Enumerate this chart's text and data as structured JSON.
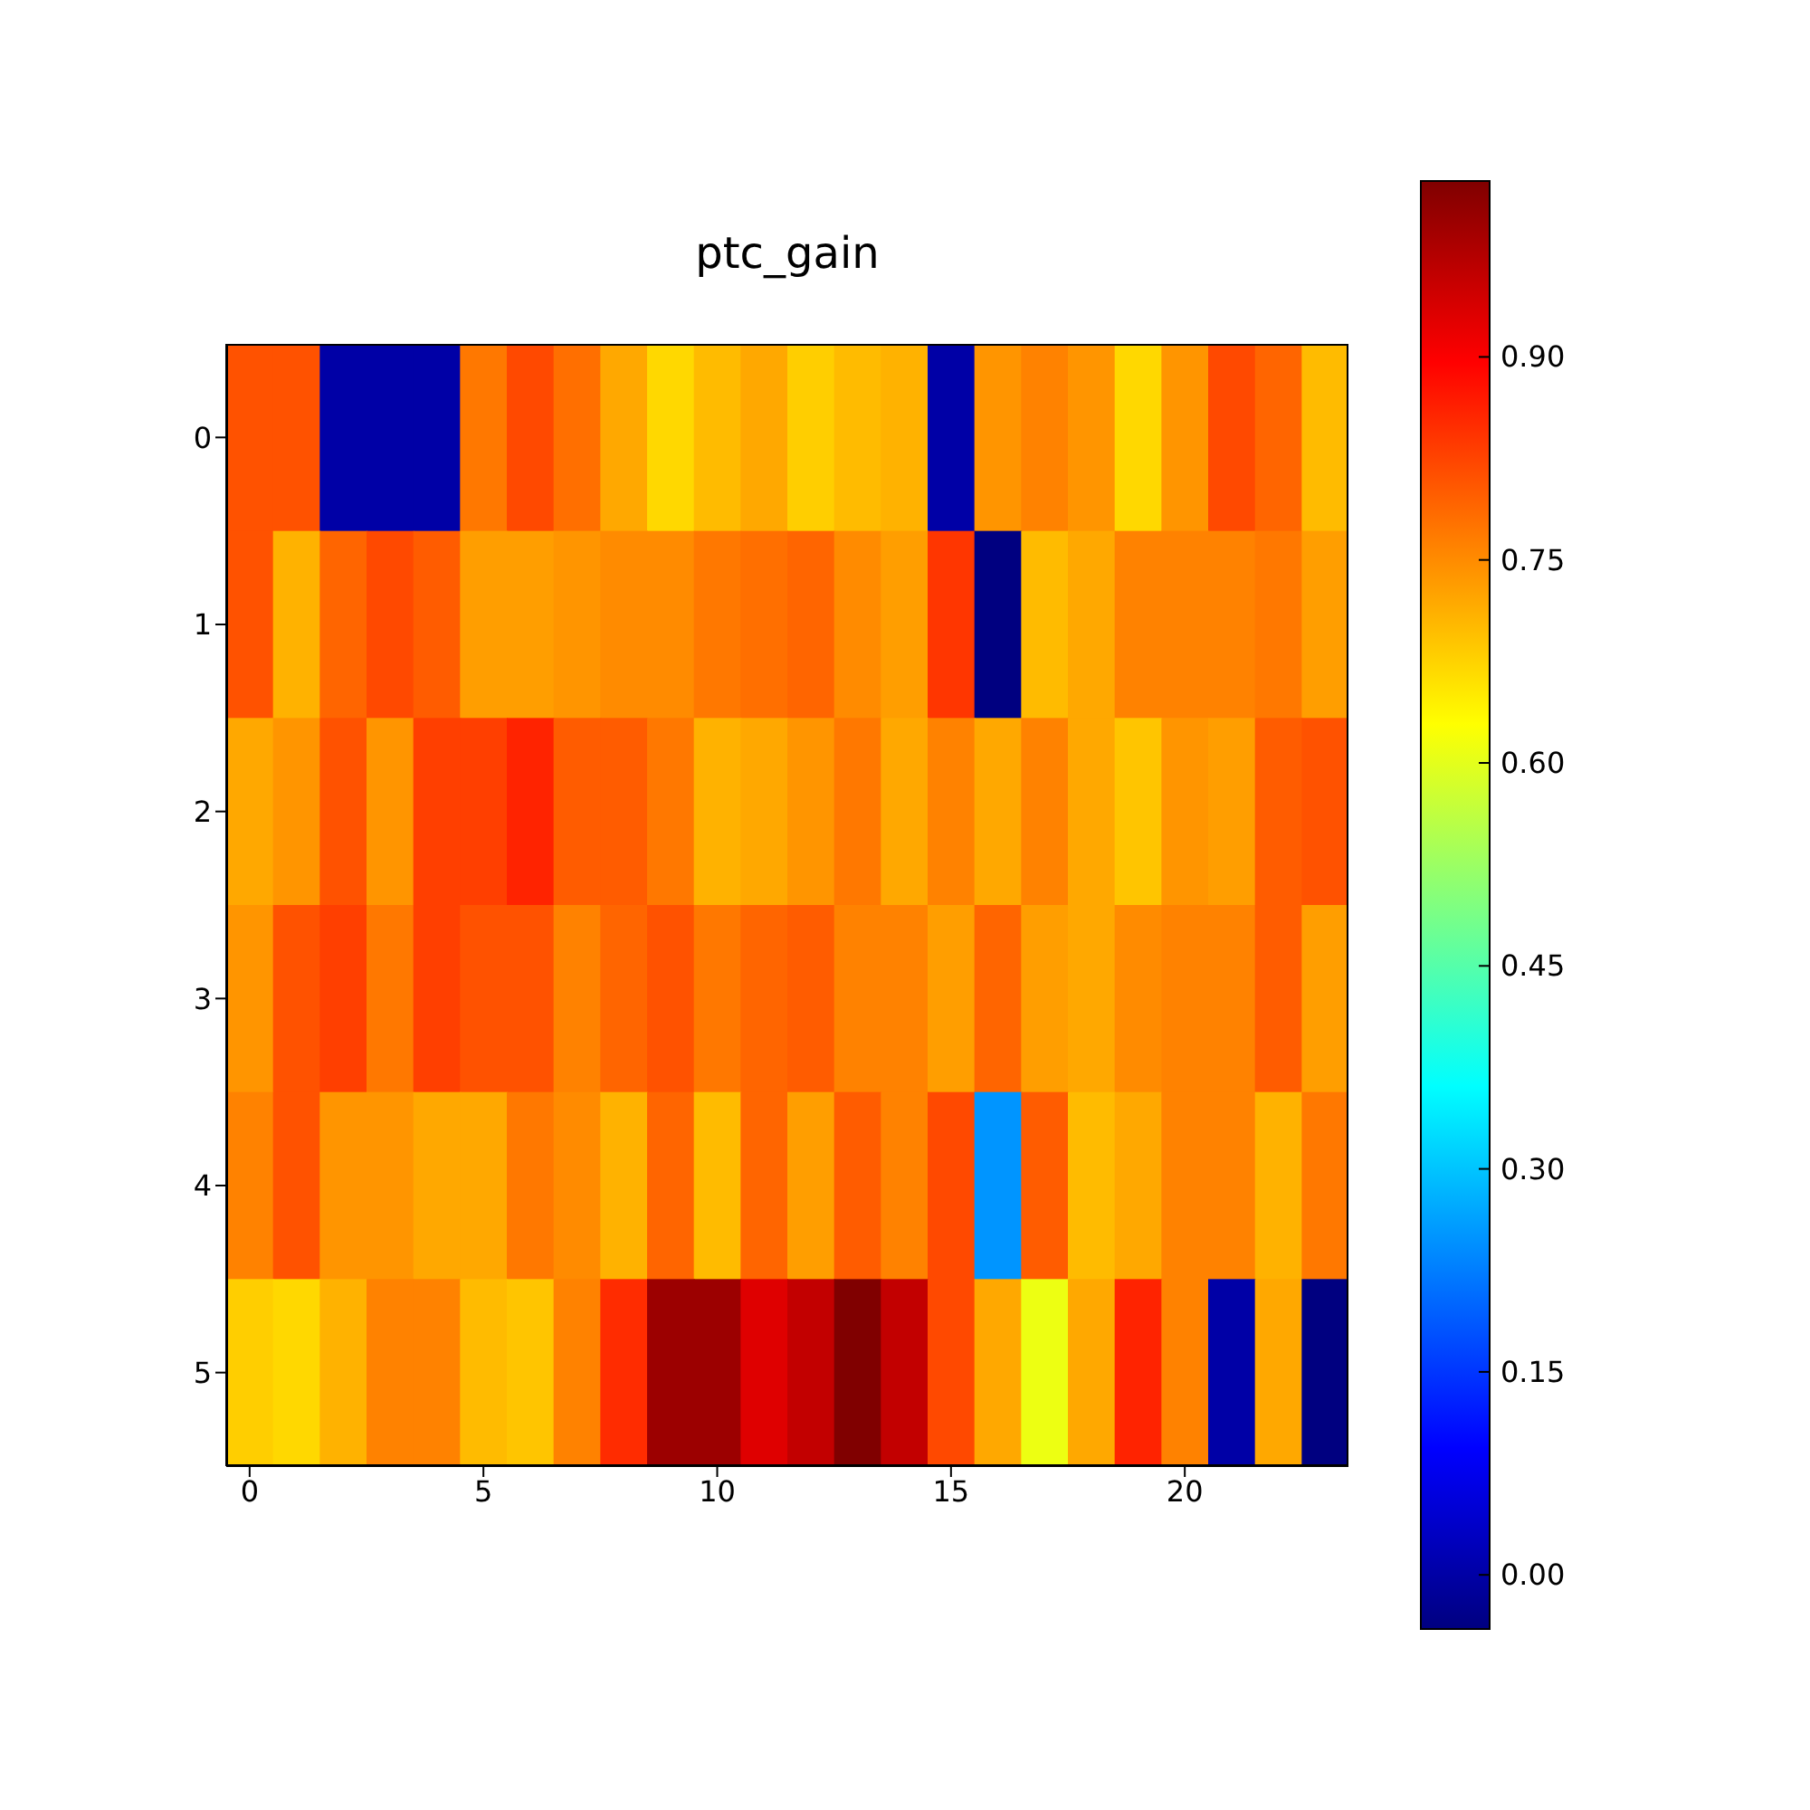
{
  "chart_data": {
    "type": "heatmap",
    "title": "ptc_gain",
    "categories": [
      "0",
      null,
      null,
      null,
      null,
      "5",
      null,
      null,
      null,
      null,
      "10",
      null,
      null,
      null,
      null,
      "15",
      null,
      null,
      null,
      null,
      "20",
      null,
      null,
      null
    ],
    "y_categories": [
      "0",
      "1",
      "2",
      "3",
      "4",
      "5"
    ],
    "cells": [
      [
        0.81,
        0.81,
        0.0,
        0.0,
        0.0,
        0.77,
        0.82,
        0.78,
        0.72,
        0.67,
        0.7,
        0.72,
        0.68,
        0.7,
        0.71,
        0.0,
        0.74,
        0.76,
        0.74,
        0.67,
        0.74,
        0.82,
        0.79,
        0.7
      ],
      [
        0.81,
        0.71,
        0.79,
        0.82,
        0.8,
        0.73,
        0.73,
        0.74,
        0.75,
        0.75,
        0.77,
        0.78,
        0.79,
        0.75,
        0.73,
        0.84,
        -0.04,
        0.7,
        0.72,
        0.76,
        0.76,
        0.76,
        0.77,
        0.73
      ],
      [
        0.72,
        0.74,
        0.81,
        0.74,
        0.83,
        0.83,
        0.86,
        0.8,
        0.8,
        0.77,
        0.71,
        0.72,
        0.74,
        0.77,
        0.72,
        0.76,
        0.72,
        0.76,
        0.72,
        0.69,
        0.74,
        0.73,
        0.8,
        0.81
      ],
      [
        0.74,
        0.81,
        0.83,
        0.77,
        0.83,
        0.81,
        0.81,
        0.76,
        0.79,
        0.81,
        0.77,
        0.79,
        0.8,
        0.76,
        0.76,
        0.73,
        0.79,
        0.73,
        0.72,
        0.75,
        0.76,
        0.76,
        0.8,
        0.73
      ],
      [
        0.76,
        0.81,
        0.74,
        0.74,
        0.72,
        0.72,
        0.77,
        0.75,
        0.71,
        0.79,
        0.7,
        0.79,
        0.73,
        0.8,
        0.76,
        0.82,
        0.25,
        0.8,
        0.7,
        0.72,
        0.76,
        0.76,
        0.71,
        0.77
      ],
      [
        0.68,
        0.67,
        0.71,
        0.76,
        0.76,
        0.7,
        0.69,
        0.76,
        0.85,
        1.0,
        1.0,
        0.93,
        0.96,
        1.03,
        0.96,
        0.82,
        0.72,
        0.61,
        0.72,
        0.86,
        0.76,
        0.0,
        0.72,
        -0.04
      ]
    ],
    "clim": [
      -0.04,
      1.03
    ],
    "cticks": [
      {
        "value": 0,
        "label": "0.00"
      },
      {
        "value": 0.15,
        "label": "0.15"
      },
      {
        "value": 0.3,
        "label": "0.30"
      },
      {
        "value": 0.45,
        "label": "0.45"
      },
      {
        "value": 0.6,
        "label": "0.60"
      },
      {
        "value": 0.75,
        "label": "0.75"
      },
      {
        "value": 0.9,
        "label": "0.90"
      }
    ]
  }
}
